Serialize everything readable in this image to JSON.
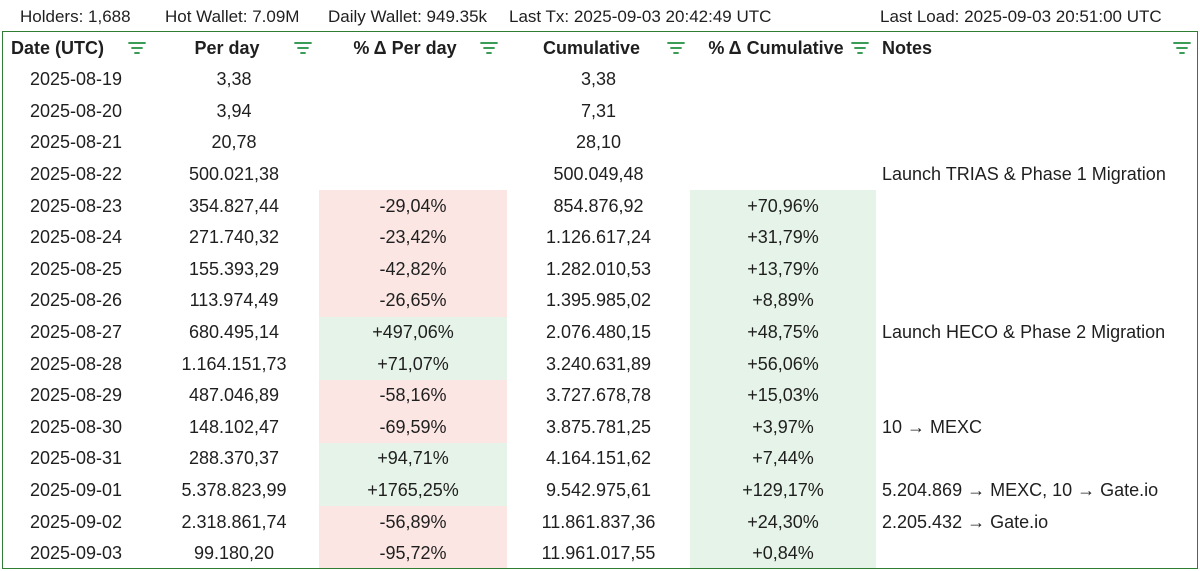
{
  "header": {
    "holders": "Holders: 1,688",
    "hot_wallet": "Hot Wallet: 7.09M",
    "daily_wallet": "Daily Wallet: 949.35k",
    "last_tx": "Last Tx: 2025-09-03 20:42:49 UTC",
    "last_load": "Last Load: 2025-09-03 20:51:00 UTC"
  },
  "columns": {
    "date": "Date (UTC)",
    "per_day": "Per day",
    "pct_per_day": "% Δ Per day",
    "cumulative": "Cumulative",
    "pct_cumulative": "% Δ Cumulative",
    "notes": "Notes"
  },
  "colors": {
    "negative_bg": "#fbe6e3",
    "positive_bg": "#e6f3e8",
    "filter_icon": "#1e8e3e",
    "border": "#2e7d32"
  },
  "rows": [
    {
      "date": "2025-08-19",
      "per_day": "3,38",
      "pct_per_day": "",
      "cumulative": "3,38",
      "pct_cumulative": "",
      "notes": ""
    },
    {
      "date": "2025-08-20",
      "per_day": "3,94",
      "pct_per_day": "",
      "cumulative": "7,31",
      "pct_cumulative": "",
      "notes": ""
    },
    {
      "date": "2025-08-21",
      "per_day": "20,78",
      "pct_per_day": "",
      "cumulative": "28,10",
      "pct_cumulative": "",
      "notes": ""
    },
    {
      "date": "2025-08-22",
      "per_day": "500.021,38",
      "pct_per_day": "",
      "cumulative": "500.049,48",
      "pct_cumulative": "",
      "notes": "Launch TRIAS & Phase 1 Migration"
    },
    {
      "date": "2025-08-23",
      "per_day": "354.827,44",
      "pct_per_day": "-29,04%",
      "cumulative": "854.876,92",
      "pct_cumulative": "+70,96%",
      "notes": ""
    },
    {
      "date": "2025-08-24",
      "per_day": "271.740,32",
      "pct_per_day": "-23,42%",
      "cumulative": "1.126.617,24",
      "pct_cumulative": "+31,79%",
      "notes": ""
    },
    {
      "date": "2025-08-25",
      "per_day": "155.393,29",
      "pct_per_day": "-42,82%",
      "cumulative": "1.282.010,53",
      "pct_cumulative": "+13,79%",
      "notes": ""
    },
    {
      "date": "2025-08-26",
      "per_day": "113.974,49",
      "pct_per_day": "-26,65%",
      "cumulative": "1.395.985,02",
      "pct_cumulative": "+8,89%",
      "notes": ""
    },
    {
      "date": "2025-08-27",
      "per_day": "680.495,14",
      "pct_per_day": "+497,06%",
      "cumulative": "2.076.480,15",
      "pct_cumulative": "+48,75%",
      "notes": "Launch HECO & Phase 2 Migration"
    },
    {
      "date": "2025-08-28",
      "per_day": "1.164.151,73",
      "pct_per_day": "+71,07%",
      "cumulative": "3.240.631,89",
      "pct_cumulative": "+56,06%",
      "notes": ""
    },
    {
      "date": "2025-08-29",
      "per_day": "487.046,89",
      "pct_per_day": "-58,16%",
      "cumulative": "3.727.678,78",
      "pct_cumulative": "+15,03%",
      "notes": ""
    },
    {
      "date": "2025-08-30",
      "per_day": "148.102,47",
      "pct_per_day": "-69,59%",
      "cumulative": "3.875.781,25",
      "pct_cumulative": "+3,97%",
      "notes": "10 → MEXC"
    },
    {
      "date": "2025-08-31",
      "per_day": "288.370,37",
      "pct_per_day": "+94,71%",
      "cumulative": "4.164.151,62",
      "pct_cumulative": "+7,44%",
      "notes": ""
    },
    {
      "date": "2025-09-01",
      "per_day": "5.378.823,99",
      "pct_per_day": "+1765,25%",
      "cumulative": "9.542.975,61",
      "pct_cumulative": "+129,17%",
      "notes": "5.204.869 → MEXC, 10 → Gate.io"
    },
    {
      "date": "2025-09-02",
      "per_day": "2.318.861,74",
      "pct_per_day": "-56,89%",
      "cumulative": "11.861.837,36",
      "pct_cumulative": "+24,30%",
      "notes": "2.205.432 → Gate.io"
    },
    {
      "date": "2025-09-03",
      "per_day": "99.180,20",
      "pct_per_day": "-95,72%",
      "cumulative": "11.961.017,55",
      "pct_cumulative": "+0,84%",
      "notes": ""
    }
  ]
}
